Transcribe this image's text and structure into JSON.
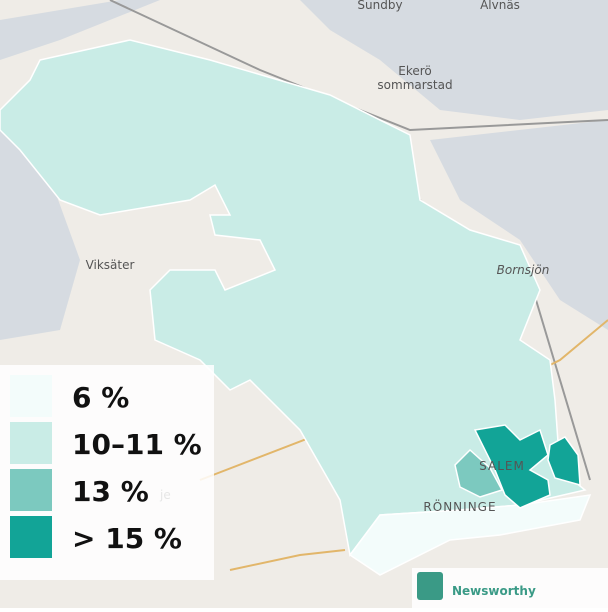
{
  "map": {
    "labels": [
      "Sundby",
      "Alvnäs",
      "Ekerö",
      "sommarstad",
      "Viksäter",
      "Bornsjön",
      "SALEM",
      "RÖNNINGE",
      "je"
    ],
    "legend": {
      "items": [
        {
          "label": "6 %",
          "color": "#f3fcfb"
        },
        {
          "label": "10–11 %",
          "color": "#c9ece6"
        },
        {
          "label": "13 %",
          "color": "#7cc9bf"
        },
        {
          "label": "> 15 %",
          "color": "#12a497"
        }
      ]
    },
    "brand": "Newsworthy"
  }
}
